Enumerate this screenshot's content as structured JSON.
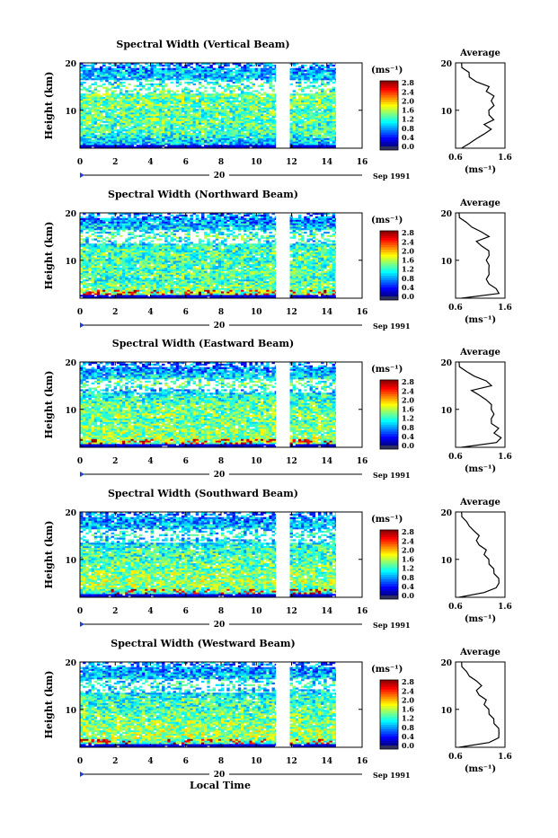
{
  "figure": {
    "xlabel": "Local Time"
  },
  "chart_data": [
    {
      "type": "heatmap",
      "title": "Spectral Width (Vertical Beam)",
      "ylabel": "Height (km)",
      "xlim": [
        0,
        16
      ],
      "ylim": [
        2,
        20
      ],
      "x_ticks": [
        0,
        2,
        4,
        6,
        8,
        10,
        12,
        14,
        16
      ],
      "y_ticks": [
        10,
        20
      ],
      "date_day": "20",
      "date_label": "Sep 1991",
      "data_segments": [
        [
          0,
          11.1
        ],
        [
          11.9,
          14.5
        ]
      ],
      "color_scale": {
        "label": "(ms⁻¹)",
        "min": 0.0,
        "max": 2.8,
        "ticks": [
          "0.0",
          "0.4",
          "0.8",
          "1.2",
          "1.6",
          "2.0",
          "2.4",
          "2.8"
        ]
      },
      "average": {
        "title": "Average",
        "xlabel": "(ms⁻¹)",
        "x_ticks": [
          "0.6",
          "1.6"
        ],
        "xlim": [
          0.6,
          1.6
        ],
        "y_ticks": [
          10,
          20
        ],
        "height": [
          2,
          3,
          4,
          5,
          6,
          7,
          8,
          9,
          10,
          11,
          12,
          13,
          14,
          15,
          16,
          17,
          18,
          19,
          20
        ],
        "width": [
          0.7,
          0.9,
          1.0,
          1.2,
          1.3,
          1.2,
          1.35,
          1.3,
          1.25,
          1.4,
          1.3,
          1.4,
          1.2,
          1.3,
          1.0,
          0.9,
          0.85,
          0.75,
          0.7
        ]
      }
    },
    {
      "type": "heatmap",
      "title": "Spectral Width (Northward Beam)",
      "ylabel": "Height (km)",
      "xlim": [
        0,
        16
      ],
      "ylim": [
        2,
        20
      ],
      "x_ticks": [
        0,
        2,
        4,
        6,
        8,
        10,
        12,
        14,
        16
      ],
      "y_ticks": [
        10,
        20
      ],
      "date_day": "20",
      "date_label": "Sep 1991",
      "data_segments": [
        [
          0,
          11.1
        ],
        [
          11.9,
          14.5
        ]
      ],
      "color_scale": {
        "label": "(ms⁻¹)",
        "min": 0.0,
        "max": 2.8,
        "ticks": [
          "0.0",
          "0.4",
          "0.8",
          "1.2",
          "1.6",
          "2.0",
          "2.4",
          "2.8"
        ]
      },
      "average": {
        "title": "Average",
        "xlabel": "(ms⁻¹)",
        "x_ticks": [
          "0.6",
          "1.6"
        ],
        "xlim": [
          0.6,
          1.6
        ],
        "y_ticks": [
          10,
          20
        ],
        "height": [
          2,
          3,
          4,
          5,
          6,
          7,
          8,
          9,
          10,
          11,
          12,
          13,
          14,
          15,
          16,
          17,
          18,
          19,
          20
        ],
        "width": [
          0.7,
          1.5,
          1.4,
          1.3,
          1.2,
          1.3,
          1.25,
          1.3,
          1.2,
          1.3,
          1.25,
          1.15,
          1.0,
          1.3,
          1.1,
          0.95,
          0.8,
          0.7,
          0.65
        ]
      }
    },
    {
      "type": "heatmap",
      "title": "Spectral Width (Eastward Beam)",
      "ylabel": "Height (km)",
      "xlim": [
        0,
        16
      ],
      "ylim": [
        2,
        20
      ],
      "x_ticks": [
        0,
        2,
        4,
        6,
        8,
        10,
        12,
        14,
        16
      ],
      "y_ticks": [
        10,
        20
      ],
      "date_day": "20",
      "date_label": "Sep 1991",
      "data_segments": [
        [
          0,
          11.1
        ],
        [
          11.9,
          14.5
        ]
      ],
      "color_scale": {
        "label": "(ms⁻¹)",
        "min": 0.0,
        "max": 2.8,
        "ticks": [
          "0.0",
          "0.4",
          "0.8",
          "1.2",
          "1.6",
          "2.0",
          "2.4",
          "2.8"
        ]
      },
      "average": {
        "title": "Average",
        "xlabel": "(ms⁻¹)",
        "x_ticks": [
          "0.6",
          "1.6"
        ],
        "xlim": [
          0.6,
          1.6
        ],
        "y_ticks": [
          10,
          20
        ],
        "height": [
          2,
          3,
          4,
          5,
          6,
          7,
          8,
          9,
          10,
          11,
          12,
          13,
          14,
          15,
          16,
          17,
          18,
          19,
          20
        ],
        "width": [
          0.7,
          1.45,
          1.5,
          1.4,
          1.45,
          1.35,
          1.3,
          1.4,
          1.3,
          1.35,
          1.2,
          1.1,
          0.9,
          1.35,
          1.2,
          1.0,
          0.8,
          0.7,
          0.65
        ]
      }
    },
    {
      "type": "heatmap",
      "title": "Spectral Width (Southward Beam)",
      "ylabel": "Height (km)",
      "xlim": [
        0,
        16
      ],
      "ylim": [
        2,
        20
      ],
      "x_ticks": [
        0,
        2,
        4,
        6,
        8,
        10,
        12,
        14,
        16
      ],
      "y_ticks": [
        10,
        20
      ],
      "date_day": "20",
      "date_label": "Sep 1991",
      "data_segments": [
        [
          0,
          11.1
        ],
        [
          11.9,
          14.5
        ]
      ],
      "color_scale": {
        "label": "(ms⁻¹)",
        "min": 0.0,
        "max": 2.8,
        "ticks": [
          "0.0",
          "0.4",
          "0.8",
          "1.2",
          "1.6",
          "2.0",
          "2.4",
          "2.8"
        ]
      },
      "average": {
        "title": "Average",
        "xlabel": "(ms⁻¹)",
        "x_ticks": [
          "0.6",
          "1.6"
        ],
        "xlim": [
          0.6,
          1.6
        ],
        "y_ticks": [
          10,
          20
        ],
        "height": [
          2,
          3,
          4,
          5,
          6,
          7,
          8,
          9,
          10,
          11,
          12,
          13,
          14,
          15,
          16,
          17,
          18,
          19,
          20
        ],
        "width": [
          0.65,
          1.2,
          1.4,
          1.5,
          1.45,
          1.4,
          1.35,
          1.3,
          1.25,
          1.2,
          1.2,
          1.1,
          1.0,
          1.1,
          0.95,
          0.9,
          0.8,
          0.75,
          0.7
        ]
      }
    },
    {
      "type": "heatmap",
      "title": "Spectral Width (Westward Beam)",
      "ylabel": "Height (km)",
      "xlim": [
        0,
        16
      ],
      "ylim": [
        2,
        20
      ],
      "x_ticks": [
        0,
        2,
        4,
        6,
        8,
        10,
        12,
        14,
        16
      ],
      "y_ticks": [
        10,
        20
      ],
      "date_day": "20",
      "date_label": "Sep 1991",
      "data_segments": [
        [
          0,
          11.1
        ],
        [
          11.9,
          14.5
        ]
      ],
      "color_scale": {
        "label": "(ms⁻¹)",
        "min": 0.0,
        "max": 2.8,
        "ticks": [
          "0.0",
          "0.4",
          "0.8",
          "1.2",
          "1.6",
          "2.0",
          "2.4",
          "2.8"
        ]
      },
      "average": {
        "title": "Average",
        "xlabel": "(ms⁻¹)",
        "x_ticks": [
          "0.6",
          "1.6"
        ],
        "xlim": [
          0.6,
          1.6
        ],
        "y_ticks": [
          10,
          20
        ],
        "height": [
          2,
          3,
          4,
          5,
          6,
          7,
          8,
          9,
          10,
          11,
          12,
          13,
          14,
          15,
          16,
          17,
          18,
          19,
          20
        ],
        "width": [
          0.65,
          1.3,
          1.45,
          1.5,
          1.45,
          1.4,
          1.35,
          1.3,
          1.25,
          1.2,
          1.2,
          1.1,
          1.0,
          1.15,
          1.0,
          0.9,
          0.8,
          0.75,
          0.7
        ]
      }
    }
  ]
}
